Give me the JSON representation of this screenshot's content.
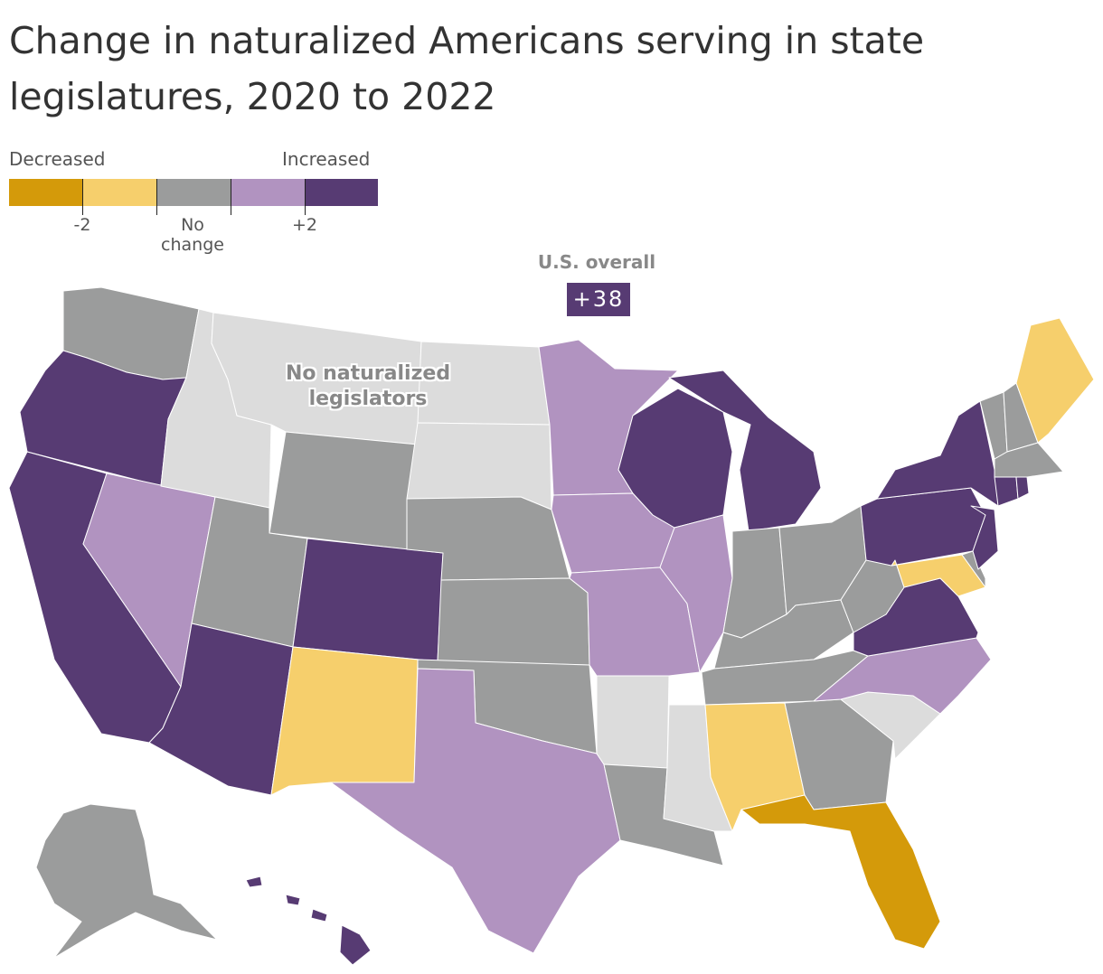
{
  "title": "Change in naturalized Americans serving in state legislatures, 2020 to 2022",
  "legend": {
    "decreased_label": "Decreased",
    "increased_label": "Increased",
    "tick_minus2": "-2",
    "tick_no_change": "No\nchange",
    "tick_plus2": "+2",
    "bins": [
      {
        "color": "#d49a0a"
      },
      {
        "color": "#f6cf6c"
      },
      {
        "color": "#9b9c9c"
      },
      {
        "color": "#b193c0"
      },
      {
        "color": "#573b73"
      }
    ]
  },
  "us_overall": {
    "label": "U.S. overall",
    "value": "+38"
  },
  "annotation": "No naturalized legislators",
  "colors": {
    "strong_decrease": "#d49a0a",
    "decrease": "#f6cf6c",
    "no_change": "#9b9c9c",
    "increase": "#b193c0",
    "strong_increase": "#573b73",
    "none": "#dcdcdc"
  },
  "states": {
    "WA": "no_change",
    "OR": "strong_increase",
    "CA": "strong_increase",
    "NV": "increase",
    "ID": "none",
    "MT": "none",
    "WY": "no_change",
    "UT": "no_change",
    "AZ": "strong_increase",
    "CO": "strong_increase",
    "NM": "decrease",
    "ND": "none",
    "SD": "none",
    "NE": "no_change",
    "KS": "no_change",
    "OK": "no_change",
    "TX": "increase",
    "MN": "increase",
    "IA": "increase",
    "MO": "increase",
    "AR": "none",
    "LA": "no_change",
    "WI": "strong_increase",
    "IL": "increase",
    "MI": "strong_increase",
    "IN": "no_change",
    "OH": "no_change",
    "KY": "no_change",
    "TN": "no_change",
    "MS": "none",
    "AL": "decrease",
    "GA": "no_change",
    "FL": "strong_decrease",
    "SC": "none",
    "NC": "increase",
    "VA": "strong_increase",
    "WV": "no_change",
    "PA": "strong_increase",
    "NY": "strong_increase",
    "VT": "no_change",
    "NH": "no_change",
    "ME": "decrease",
    "MA": "no_change",
    "RI": "strong_increase",
    "CT": "strong_increase",
    "NJ": "strong_increase",
    "DE": "no_change",
    "MD": "decrease",
    "AK": "no_change",
    "HI": "strong_increase"
  }
}
